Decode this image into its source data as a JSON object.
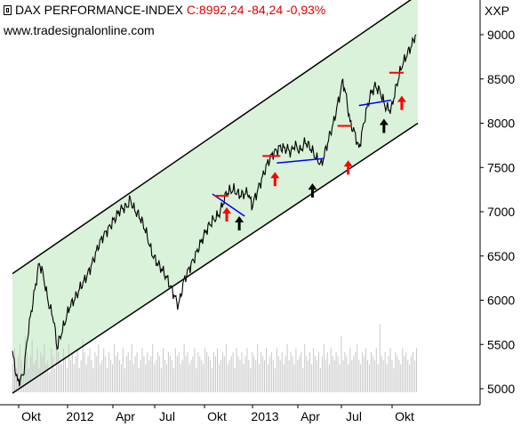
{
  "header": {
    "title": "DAX PERFORMANCE-INDEX",
    "quote": "C:8992,24 -84,24 -0,93%",
    "website": "www.tradesignalonline.com",
    "symbol": "XXP"
  },
  "chart_data": {
    "type": "line",
    "title": "DAX PERFORMANCE-INDEX",
    "ylim": [
      4850,
      9250
    ],
    "yticks": [
      5000,
      5500,
      6000,
      6500,
      7000,
      7500,
      8000,
      8500,
      9000
    ],
    "xtick_labels": [
      "Okt",
      "2012",
      "Apr",
      "Jul",
      "Okt",
      "2013",
      "Apr",
      "Jul",
      "Okt"
    ],
    "series": [
      {
        "values": [
          [
            0,
            5400
          ],
          [
            3,
            5050
          ],
          [
            6,
            5150
          ],
          [
            9,
            5700
          ],
          [
            12,
            6050
          ],
          [
            15,
            6400
          ],
          [
            17,
            6300
          ],
          [
            20,
            6000
          ],
          [
            23,
            5800
          ],
          [
            25,
            5450
          ],
          [
            28,
            5650
          ],
          [
            32,
            5950
          ],
          [
            36,
            6050
          ],
          [
            40,
            6200
          ],
          [
            44,
            6400
          ],
          [
            48,
            6600
          ],
          [
            52,
            6750
          ],
          [
            56,
            6900
          ],
          [
            60,
            7000
          ],
          [
            64,
            7050
          ],
          [
            66,
            7150
          ],
          [
            68,
            7050
          ],
          [
            71,
            6950
          ],
          [
            74,
            6800
          ],
          [
            78,
            6550
          ],
          [
            82,
            6400
          ],
          [
            86,
            6250
          ],
          [
            90,
            6100
          ],
          [
            93,
            5950
          ],
          [
            96,
            6200
          ],
          [
            100,
            6400
          ],
          [
            104,
            6600
          ],
          [
            108,
            6750
          ],
          [
            112,
            6900
          ],
          [
            116,
            7000
          ],
          [
            120,
            7200
          ],
          [
            124,
            7250
          ],
          [
            128,
            7200
          ],
          [
            132,
            7200
          ],
          [
            134,
            7050
          ],
          [
            138,
            7300
          ],
          [
            142,
            7500
          ],
          [
            146,
            7650
          ],
          [
            150,
            7750
          ],
          [
            154,
            7700
          ],
          [
            156,
            7650
          ],
          [
            158,
            7750
          ],
          [
            161,
            7700
          ],
          [
            164,
            7800
          ],
          [
            167,
            7700
          ],
          [
            170,
            7600
          ],
          [
            173,
            7550
          ],
          [
            176,
            7750
          ],
          [
            180,
            8000
          ],
          [
            183,
            8300
          ],
          [
            185,
            8500
          ],
          [
            187,
            8300
          ],
          [
            189,
            8000
          ],
          [
            192,
            7850
          ],
          [
            194,
            7700
          ],
          [
            197,
            8050
          ],
          [
            200,
            8300
          ],
          [
            203,
            8400
          ],
          [
            206,
            8350
          ],
          [
            209,
            8200
          ],
          [
            212,
            8150
          ],
          [
            215,
            8400
          ],
          [
            218,
            8650
          ],
          [
            221,
            8800
          ],
          [
            224,
            8900
          ],
          [
            226,
            9000
          ]
        ]
      }
    ],
    "annotations": {
      "channel": {
        "upper": [
          [
            0,
            6300
          ],
          [
            227,
            9450
          ]
        ],
        "lower": [
          [
            0,
            4950
          ],
          [
            227,
            8000
          ]
        ]
      },
      "trend_lines": [
        [
          [
            112,
            7200
          ],
          [
            130,
            6950
          ]
        ],
        [
          [
            148,
            7550
          ],
          [
            174,
            7600
          ]
        ],
        [
          [
            194,
            8200
          ],
          [
            212,
            8260
          ]
        ]
      ],
      "support_marks": [
        [
          [
            113,
            7180
          ],
          [
            121,
            7180
          ]
        ],
        [
          [
            140,
            7630
          ],
          [
            150,
            7630
          ]
        ],
        [
          [
            182,
            7970
          ],
          [
            190,
            7970
          ]
        ],
        [
          [
            211,
            8570
          ],
          [
            219,
            8570
          ]
        ]
      ],
      "red_arrows": [
        [
          120,
          7050
        ],
        [
          147,
          7450
        ],
        [
          188,
          7580
        ],
        [
          218,
          8310
        ]
      ],
      "black_arrows": [
        [
          127,
          6950
        ],
        [
          168,
          7320
        ],
        [
          208,
          8050
        ]
      ]
    },
    "volume_bars": [
      35,
      55,
      30,
      45,
      60,
      40,
      25,
      70,
      50,
      30,
      45,
      65,
      35,
      40,
      55,
      30,
      50,
      45,
      60,
      35,
      40,
      25,
      55,
      45,
      30,
      65,
      50,
      40,
      35,
      55,
      45,
      30,
      60,
      40,
      50,
      35,
      45,
      55,
      30,
      40,
      65,
      50,
      35,
      45,
      55,
      40,
      30,
      50,
      45,
      60,
      35,
      40,
      55,
      45,
      30,
      50,
      40,
      35,
      60,
      45,
      50,
      40,
      35,
      55,
      30,
      45,
      50,
      40,
      60,
      35,
      45,
      50,
      30,
      40,
      55,
      45,
      35,
      50,
      40,
      45,
      60,
      35,
      40,
      50,
      45,
      30,
      55,
      40,
      35,
      50,
      45,
      40,
      30,
      55,
      45,
      50,
      35,
      40,
      60,
      45,
      50,
      35,
      40,
      45,
      55,
      30,
      50,
      45,
      40,
      35,
      55,
      50,
      45,
      40,
      30,
      50,
      45,
      55,
      35,
      40,
      50,
      45,
      60,
      35,
      40,
      45,
      50,
      30,
      55,
      45,
      40,
      50,
      35,
      45,
      55,
      40,
      30,
      50,
      45,
      40,
      60,
      35,
      50,
      45,
      40,
      55,
      35,
      45,
      50,
      40,
      30,
      55,
      45,
      40,
      50,
      35,
      45,
      60,
      40,
      50,
      45,
      35,
      55,
      40,
      45,
      50,
      30,
      60,
      45,
      40,
      50,
      35,
      55,
      45,
      40,
      50,
      30,
      45,
      60,
      40,
      50,
      35,
      55,
      45,
      40,
      50,
      45,
      35,
      70,
      40,
      50,
      45,
      35,
      55,
      40,
      45,
      50,
      60,
      40,
      35,
      50,
      45,
      55,
      40,
      35,
      50,
      45,
      40,
      55,
      35,
      85,
      45,
      40,
      50,
      35,
      45,
      55,
      40,
      30,
      50,
      45,
      40,
      35,
      55,
      45,
      50,
      40,
      35,
      45,
      50,
      40,
      55
    ]
  },
  "colors": {
    "channel_fill": "#d9f2d9",
    "price": "#000000",
    "trend_line": "#0000ff",
    "support_mark": "#ff0000",
    "arrow_red": "#ff0000",
    "arrow_black": "#000000",
    "volume": "#c8c8c8"
  }
}
